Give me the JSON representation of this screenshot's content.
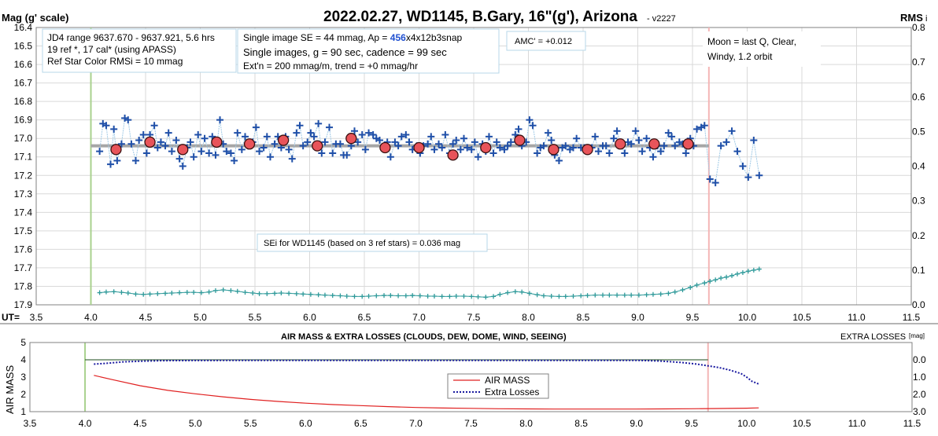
{
  "charts_text": {
    "top_title": "2022.02.27, WD1145, B.Gary, 16\"(g'), Arizona",
    "version": "- v2227",
    "y_left_label": "Mag (g' scale)",
    "y_right_label": "RMS",
    "y_right_label_suffix": "i",
    "x_prefix": "UT=",
    "info_box_1": [
      "JD4 range 9637.670 - 9637.921, 5.6 hrs",
      "19 ref *, 17 cal* (using APASS)",
      "Ref Star Color RMSi = 10 mmag"
    ],
    "info_box_2_line1_pre": "Single image SE = 44 mmag, Ap = ",
    "info_box_2_line1_ap": "456",
    "info_box_2_line1_post": "x4x12b3snap",
    "info_box_2_line2": "Single images, g = 90 sec, cadence = 99 sec",
    "info_box_2_line3": "Ext'n = 200 mmag/m, trend = +0 mmag/hr",
    "amc": "AMC' = +0.012",
    "moon_lines": [
      "Moon = last Q, Clear,",
      "Windy, 1.2 orbit"
    ],
    "sei_note": "SEi for WD1145 (based on 3 ref stars) = 0.036 mag",
    "bottom_title": "AIR MASS & EXTRA LOSSES (CLOUDS, DEW, DOME, WIND, SEEING)",
    "bottom_y_left_label": "AIR MASS",
    "bottom_y_right_label": "EXTRA LOSSES",
    "bottom_y_right_unit": "[mag]",
    "legend_airmass": "AIR MASS",
    "legend_losses": "Extra Losses"
  },
  "colors": {
    "raw_points": "#1f4fa8",
    "raw_line": "#9ec9e6",
    "binned_fill": "#e8545a",
    "trend": "#a6a6a6",
    "rms_points": "#2f9a9a",
    "start_line": "#a9d18e",
    "end_line": "#f4b6b6",
    "airmass": "#e02020",
    "losses": "#1a1aa0",
    "ap_value": "#1f4fd0"
  },
  "chart_data": [
    {
      "type": "scatter",
      "title": "2022.02.27, WD1145, B.Gary, 16\"(g'), Arizona",
      "xlabel": "UT",
      "ylabel": "Mag (g' scale)",
      "y2label": "RMS i",
      "xlim": [
        3.5,
        11.5
      ],
      "ylim": [
        17.9,
        16.4
      ],
      "y2lim": [
        0.0,
        0.8
      ],
      "x_ticks": [
        3.5,
        4.0,
        4.5,
        5.0,
        5.5,
        6.0,
        6.5,
        7.0,
        7.5,
        8.0,
        8.5,
        9.0,
        9.5,
        10.0,
        10.5,
        11.0,
        11.5
      ],
      "y_ticks": [
        16.4,
        16.5,
        16.6,
        16.7,
        16.8,
        16.9,
        17.0,
        17.1,
        17.2,
        17.3,
        17.4,
        17.5,
        17.6,
        17.7,
        17.8,
        17.9
      ],
      "y2_ticks": [
        0.0,
        0.1,
        0.2,
        0.3,
        0.4,
        0.5,
        0.6,
        0.7,
        0.8
      ],
      "grid": true,
      "vertical_markers": [
        4.0,
        9.65
      ],
      "trend": {
        "x": [
          4.0,
          9.65
        ],
        "y": [
          17.04,
          17.04
        ]
      },
      "raw_series": {
        "x": [
          4.08,
          4.11,
          4.14,
          4.18,
          4.21,
          4.24,
          4.28,
          4.31,
          4.34,
          4.37,
          4.41,
          4.44,
          4.48,
          4.51,
          4.54,
          4.58,
          4.61,
          4.64,
          4.68,
          4.71,
          4.74,
          4.78,
          4.81,
          4.84,
          4.88,
          4.91,
          4.94,
          4.98,
          5.01,
          5.04,
          5.08,
          5.11,
          5.14,
          5.18,
          5.21,
          5.24,
          5.28,
          5.31,
          5.34,
          5.38,
          5.41,
          5.44,
          5.48,
          5.51,
          5.54,
          5.58,
          5.61,
          5.64,
          5.68,
          5.71,
          5.74,
          5.78,
          5.81,
          5.84,
          5.88,
          5.91,
          5.94,
          5.98,
          6.01,
          6.04,
          6.08,
          6.11,
          6.14,
          6.18,
          6.21,
          6.24,
          6.28,
          6.31,
          6.34,
          6.38,
          6.41,
          6.44,
          6.48,
          6.51,
          6.54,
          6.58,
          6.61,
          6.64,
          6.68,
          6.71,
          6.74,
          6.78,
          6.81,
          6.84,
          6.88,
          6.91,
          6.94,
          6.98,
          7.01,
          7.04,
          7.08,
          7.11,
          7.14,
          7.18,
          7.21,
          7.24,
          7.28,
          7.31,
          7.34,
          7.38,
          7.41,
          7.44,
          7.48,
          7.51,
          7.54,
          7.58,
          7.61,
          7.64,
          7.68,
          7.71,
          7.74,
          7.78,
          7.81,
          7.84,
          7.88,
          7.91,
          7.94,
          7.98,
          8.01,
          8.04,
          8.08,
          8.11,
          8.14,
          8.18,
          8.21,
          8.24,
          8.28,
          8.31,
          8.34,
          8.38,
          8.41,
          8.44,
          8.48,
          8.51,
          8.54,
          8.58,
          8.61,
          8.64,
          8.68,
          8.71,
          8.74,
          8.78,
          8.81,
          8.84,
          8.88,
          8.91,
          8.94,
          8.98,
          9.01,
          9.04,
          9.08,
          9.11,
          9.14,
          9.18,
          9.21,
          9.24,
          9.28,
          9.31,
          9.34,
          9.38,
          9.41,
          9.44,
          9.48,
          9.51,
          9.54,
          9.58,
          9.61,
          9.66,
          9.71,
          9.76,
          9.81,
          9.86,
          9.91,
          9.96,
          10.01,
          10.06,
          10.11
        ],
        "y": [
          17.07,
          16.92,
          16.93,
          17.14,
          16.95,
          17.12,
          17.03,
          16.89,
          16.9,
          17.03,
          17.12,
          17.01,
          16.98,
          17.08,
          16.98,
          16.93,
          17.05,
          17.02,
          17.04,
          16.97,
          17.07,
          17.01,
          17.11,
          17.15,
          17.05,
          17.02,
          17.1,
          16.98,
          17.07,
          17.0,
          17.08,
          16.99,
          17.09,
          16.9,
          17.03,
          17.07,
          17.08,
          17.12,
          16.97,
          17.06,
          16.99,
          17.04,
          17.02,
          16.94,
          17.07,
          17.05,
          16.99,
          17.1,
          17.03,
          16.99,
          17.05,
          16.99,
          17.06,
          17.11,
          16.97,
          16.93,
          17.04,
          17.02,
          16.97,
          16.99,
          16.92,
          17.08,
          17.02,
          16.94,
          17.08,
          17.03,
          17.03,
          17.09,
          17.09,
          17.04,
          16.96,
          17.02,
          16.98,
          17.06,
          16.97,
          16.98,
          17.0,
          17.01,
          17.05,
          17.02,
          17.1,
          17.02,
          17.04,
          16.99,
          16.98,
          17.02,
          17.06,
          17.04,
          17.08,
          17.04,
          17.03,
          16.99,
          17.06,
          17.03,
          17.05,
          16.98,
          17.08,
          17.03,
          17.01,
          17.06,
          17.0,
          17.05,
          17.06,
          17.02,
          17.1,
          17.03,
          17.07,
          16.99,
          17.08,
          17.02,
          17.05,
          17.06,
          17.04,
          17.02,
          16.98,
          16.95,
          17.04,
          17.02,
          16.9,
          16.93,
          17.08,
          17.05,
          17.04,
          16.97,
          17.01,
          17.09,
          17.12,
          17.05,
          17.04,
          17.06,
          17.05,
          17.0,
          17.05,
          17.05,
          17.05,
          17.05,
          16.99,
          17.07,
          17.04,
          17.04,
          17.08,
          17.0,
          16.96,
          17.03,
          17.08,
          17.02,
          17.03,
          16.96,
          17.01,
          17.07,
          17.0,
          17.05,
          17.1,
          17.04,
          17.07,
          17.04,
          16.97,
          16.99,
          17.04,
          17.02,
          17.03,
          17.08,
          17.0,
          17.04,
          16.95,
          16.94,
          16.93,
          17.22,
          17.24,
          17.04,
          17.02,
          16.96,
          17.07,
          17.15,
          17.21,
          17.01,
          17.2
        ]
      },
      "binned_series": {
        "x": [
          4.23,
          4.54,
          4.84,
          5.15,
          5.45,
          5.76,
          6.07,
          6.38,
          6.69,
          7.0,
          7.31,
          7.61,
          7.92,
          8.23,
          8.54,
          8.84,
          9.15,
          9.46
        ],
        "y": [
          17.06,
          17.02,
          17.06,
          17.02,
          17.03,
          17.01,
          17.04,
          17.0,
          17.05,
          17.05,
          17.09,
          17.05,
          17.01,
          17.06,
          17.06,
          17.03,
          17.03,
          17.03
        ]
      },
      "rms_series": {
        "x": [
          4.08,
          4.14,
          4.21,
          4.28,
          4.34,
          4.41,
          4.48,
          4.54,
          4.61,
          4.68,
          4.74,
          4.81,
          4.88,
          4.94,
          5.01,
          5.08,
          5.14,
          5.21,
          5.28,
          5.34,
          5.41,
          5.48,
          5.54,
          5.61,
          5.68,
          5.74,
          5.81,
          5.88,
          5.94,
          6.01,
          6.08,
          6.14,
          6.21,
          6.28,
          6.34,
          6.41,
          6.48,
          6.54,
          6.61,
          6.68,
          6.74,
          6.81,
          6.88,
          6.94,
          7.01,
          7.08,
          7.14,
          7.21,
          7.28,
          7.34,
          7.41,
          7.48,
          7.54,
          7.61,
          7.68,
          7.74,
          7.81,
          7.88,
          7.94,
          8.01,
          8.08,
          8.14,
          8.21,
          8.28,
          8.34,
          8.41,
          8.48,
          8.54,
          8.61,
          8.68,
          8.74,
          8.81,
          8.88,
          8.94,
          9.01,
          9.08,
          9.14,
          9.21,
          9.28,
          9.34,
          9.41,
          9.48,
          9.54,
          9.61,
          9.66,
          9.71,
          9.76,
          9.81,
          9.86,
          9.91,
          9.96,
          10.01,
          10.06,
          10.11
        ],
        "y": [
          0.035,
          0.037,
          0.038,
          0.036,
          0.034,
          0.031,
          0.03,
          0.031,
          0.032,
          0.033,
          0.034,
          0.035,
          0.036,
          0.036,
          0.035,
          0.037,
          0.041,
          0.043,
          0.041,
          0.039,
          0.036,
          0.034,
          0.032,
          0.032,
          0.033,
          0.034,
          0.033,
          0.032,
          0.031,
          0.03,
          0.029,
          0.028,
          0.027,
          0.026,
          0.025,
          0.024,
          0.024,
          0.025,
          0.026,
          0.027,
          0.027,
          0.026,
          0.026,
          0.027,
          0.026,
          0.025,
          0.025,
          0.024,
          0.024,
          0.025,
          0.025,
          0.024,
          0.023,
          0.022,
          0.024,
          0.03,
          0.035,
          0.038,
          0.037,
          0.033,
          0.029,
          0.026,
          0.025,
          0.024,
          0.024,
          0.025,
          0.026,
          0.027,
          0.028,
          0.028,
          0.028,
          0.028,
          0.028,
          0.028,
          0.028,
          0.029,
          0.03,
          0.031,
          0.033,
          0.037,
          0.043,
          0.05,
          0.057,
          0.063,
          0.068,
          0.072,
          0.077,
          0.08,
          0.084,
          0.089,
          0.093,
          0.097,
          0.1,
          0.103
        ]
      }
    },
    {
      "type": "line",
      "title": "AIR MASS & EXTRA LOSSES (CLOUDS, DEW, DOME, WIND, SEEING)",
      "xlabel": "",
      "ylabel": "AIR MASS",
      "y2label": "EXTRA LOSSES [mag]",
      "xlim": [
        3.5,
        11.5
      ],
      "ylim": [
        1,
        5
      ],
      "y2lim": [
        3.0,
        -1.0
      ],
      "x_ticks": [
        3.5,
        4.0,
        4.5,
        5.0,
        5.5,
        6.0,
        6.5,
        7.0,
        7.5,
        8.0,
        8.5,
        9.0,
        9.5,
        10.0,
        10.5,
        11.0,
        11.5
      ],
      "y_ticks": [
        1,
        2,
        3,
        4,
        5
      ],
      "y2_ticks": [
        0.0,
        1.0,
        2.0,
        3.0
      ],
      "legend": [
        "AIR MASS",
        "Extra Losses"
      ],
      "legend_position": "center",
      "vertical_markers": [
        4.0,
        9.65
      ],
      "series": [
        {
          "name": "AIR MASS",
          "x": [
            4.08,
            4.25,
            4.5,
            4.75,
            5.0,
            5.25,
            5.5,
            5.75,
            6.0,
            6.25,
            6.5,
            6.75,
            7.0,
            7.25,
            7.5,
            7.75,
            8.0,
            8.25,
            8.5,
            8.75,
            9.0,
            9.25,
            9.5,
            9.75,
            10.0,
            10.11
          ],
          "y": [
            3.1,
            2.85,
            2.5,
            2.23,
            2.03,
            1.86,
            1.71,
            1.59,
            1.49,
            1.41,
            1.35,
            1.29,
            1.24,
            1.21,
            1.19,
            1.17,
            1.16,
            1.15,
            1.15,
            1.15,
            1.15,
            1.16,
            1.17,
            1.18,
            1.2,
            1.22
          ]
        },
        {
          "name": "Extra Losses",
          "x": [
            4.08,
            4.2,
            4.35,
            4.5,
            4.7,
            5.0,
            5.5,
            6.0,
            6.5,
            7.0,
            7.5,
            8.0,
            8.5,
            9.0,
            9.2,
            9.4,
            9.55,
            9.65,
            9.75,
            9.85,
            9.95,
            10.0,
            10.05,
            10.11
          ],
          "y": [
            0.25,
            0.2,
            0.12,
            0.08,
            0.05,
            0.04,
            0.03,
            0.03,
            0.03,
            0.03,
            0.03,
            0.03,
            0.03,
            0.03,
            0.07,
            0.15,
            0.25,
            0.35,
            0.45,
            0.6,
            0.8,
            1.0,
            1.25,
            1.4
          ]
        }
      ]
    }
  ]
}
